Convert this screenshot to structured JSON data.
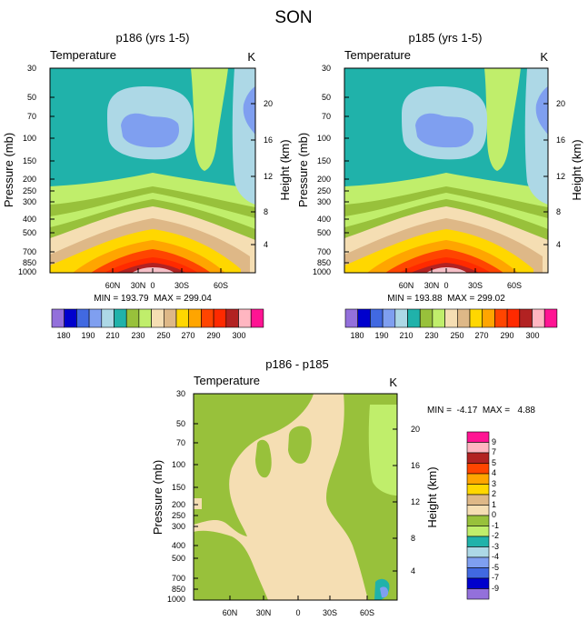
{
  "figure_title": "SON",
  "palettes": {
    "absolute": [
      "#9370db",
      "#0000cd",
      "#4169e1",
      "#7f9ff0",
      "#add8e6",
      "#20b2aa",
      "#98c13b",
      "#c0ee6b",
      "#f5deb3",
      "#deb887",
      "#ffd700",
      "#ffa500",
      "#ff4500",
      "#ff2a00",
      "#b22222",
      "#ffb6c1",
      "#ff1493"
    ],
    "difference": [
      "#9370db",
      "#0000cd",
      "#4169e1",
      "#7f9ff0",
      "#add8e6",
      "#20b2aa",
      "#c0ee6b",
      "#98c13b",
      "#f5deb3",
      "#deb887",
      "#ffd700",
      "#ffa500",
      "#ff4500",
      "#b22222",
      "#ffb6c1",
      "#ff1493"
    ]
  },
  "absolute_colorbar_labels": [
    "180",
    "190",
    "210",
    "230",
    "250",
    "270",
    "290",
    "300"
  ],
  "difference_colorbar_labels": [
    "9",
    "7",
    "5",
    "4",
    "3",
    "2",
    "1",
    "0",
    "-1",
    "-2",
    "-3",
    "-4",
    "-5",
    "-7",
    "-9"
  ],
  "chart_data": [
    {
      "type": "contour",
      "title": "p186 (yrs 1-5)",
      "variable": "Temperature",
      "units": "K",
      "ylabel": "Pressure (mb)",
      "ylabel_right": "Height (km)",
      "x_ticks": [
        "60N",
        "30N",
        "0",
        "30S",
        "60S"
      ],
      "x_values": [
        60,
        30,
        0,
        -30,
        -60
      ],
      "xlim": [
        90,
        -90
      ],
      "y_ticks": [
        "30",
        "50",
        "70",
        "100",
        "150",
        "200",
        "250",
        "300",
        "400",
        "500",
        "700",
        "850",
        "1000"
      ],
      "y_values": [
        30,
        50,
        70,
        100,
        150,
        200,
        250,
        300,
        400,
        500,
        700,
        850,
        1000
      ],
      "ylim": [
        30,
        1000
      ],
      "height_ticks": [
        "20",
        "16",
        "12",
        "8",
        "4"
      ],
      "height_values": [
        20,
        16,
        12,
        8,
        4
      ],
      "min": "193.79",
      "max": "299.04",
      "stats_text": "MIN = 193.79  MAX = 299.04"
    },
    {
      "type": "contour",
      "title": "p185 (yrs 1-5)",
      "variable": "Temperature",
      "units": "K",
      "ylabel": "Pressure (mb)",
      "ylabel_right": "Height (km)",
      "x_ticks": [
        "60N",
        "30N",
        "0",
        "30S",
        "60S"
      ],
      "x_values": [
        60,
        30,
        0,
        -30,
        -60
      ],
      "xlim": [
        90,
        -90
      ],
      "y_ticks": [
        "30",
        "50",
        "70",
        "100",
        "150",
        "200",
        "250",
        "300",
        "400",
        "500",
        "700",
        "850",
        "1000"
      ],
      "y_values": [
        30,
        50,
        70,
        100,
        150,
        200,
        250,
        300,
        400,
        500,
        700,
        850,
        1000
      ],
      "ylim": [
        30,
        1000
      ],
      "height_ticks": [
        "20",
        "16",
        "12",
        "8",
        "4"
      ],
      "height_values": [
        20,
        16,
        12,
        8,
        4
      ],
      "min": "193.88",
      "max": "299.02",
      "stats_text": "MIN = 193.88  MAX = 299.02"
    },
    {
      "type": "contour",
      "title": "p186 - p185",
      "variable": "Temperature",
      "units": "K",
      "ylabel": "Pressure (mb)",
      "ylabel_right": "Height (km)",
      "x_ticks": [
        "60N",
        "30N",
        "0",
        "30S",
        "60S"
      ],
      "x_values": [
        60,
        30,
        0,
        -30,
        -60
      ],
      "xlim": [
        90,
        -90
      ],
      "y_ticks": [
        "30",
        "50",
        "70",
        "100",
        "150",
        "200",
        "250",
        "300",
        "400",
        "500",
        "700",
        "850",
        "1000"
      ],
      "y_values": [
        30,
        50,
        70,
        100,
        150,
        200,
        250,
        300,
        400,
        500,
        700,
        850,
        1000
      ],
      "ylim": [
        30,
        1000
      ],
      "height_ticks": [
        "20",
        "16",
        "12",
        "8",
        "4"
      ],
      "height_values": [
        20,
        16,
        12,
        8,
        4
      ],
      "min": "-4.17",
      "max": "4.88",
      "stats_text": "MIN =  -4.17  MAX =   4.88"
    }
  ]
}
